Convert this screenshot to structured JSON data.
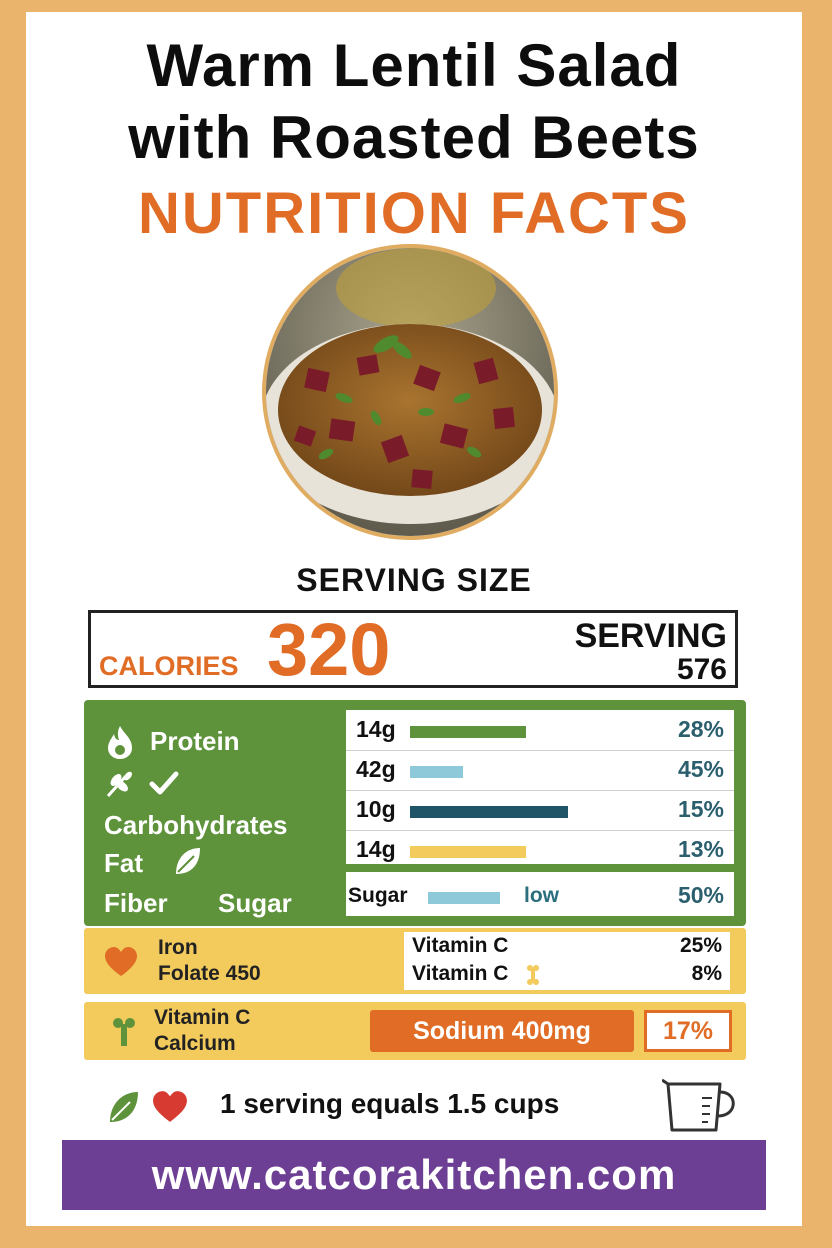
{
  "title_line1": "Warm Lentil Salad",
  "title_line2": "with Roasted Beets",
  "subtitle": "NUTRITION FACTS",
  "serving_size_heading": "SERVING SIZE",
  "calories": {
    "label": "CALORIES",
    "value": "320",
    "serving_label": "SERVING",
    "serving_value": "576"
  },
  "macros": {
    "labels": {
      "protein": "Protein",
      "carbohydrates": "Carbohydrates",
      "fat": "Fat",
      "fiber": "Fiber",
      "sugar": "Sugar"
    },
    "rows": [
      {
        "amount": "14g",
        "percent": "28%",
        "fill": 0.55,
        "color": "#5e923b"
      },
      {
        "amount": "42g",
        "percent": "45%",
        "fill": 0.25,
        "color": "#8ec9da"
      },
      {
        "amount": "10g",
        "percent": "15%",
        "fill": 0.75,
        "color": "#1f5566"
      },
      {
        "amount": "14g",
        "percent": "13%",
        "fill": 0.55,
        "color": "#f2cb5c"
      }
    ],
    "sugar_row": {
      "label": "Sugar",
      "note": "low",
      "percent": "50%",
      "fill": 0.3,
      "color": "#8ec9da"
    }
  },
  "vitamins": {
    "left_line1": "Iron",
    "left_line2": "Folate 450",
    "rows": [
      {
        "name": "Vitamin C",
        "percent": "25%"
      },
      {
        "name": "Vitamin C",
        "percent": "8%"
      }
    ]
  },
  "sodium_section": {
    "left_line1": "Vitamin C",
    "left_line2": "Calcium",
    "sodium_label": "Sodium 400mg",
    "sodium_percent": "17%"
  },
  "footer_note": "1 serving equals 1.5 cups",
  "website": "www.catcorakitchen.com",
  "colors": {
    "accent": "#e06c26",
    "green": "#5e923b",
    "yellow": "#f2cb5c",
    "purple": "#6c3e94",
    "border": "#eab46c"
  }
}
